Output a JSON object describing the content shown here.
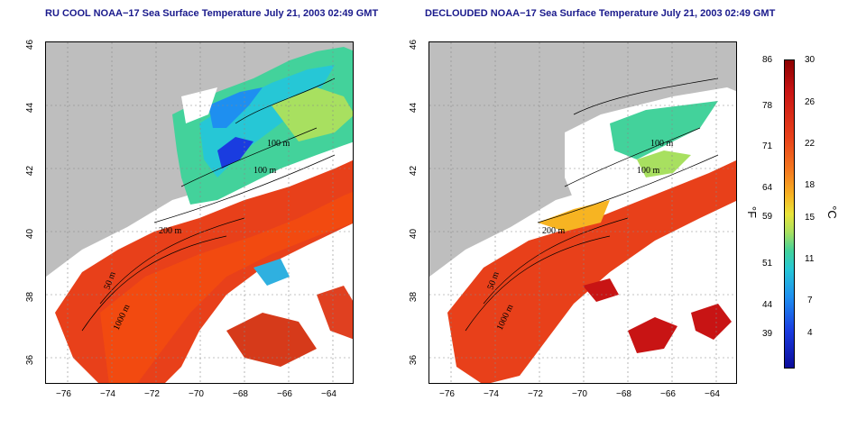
{
  "left_panel": {
    "title": "RU COOL NOAA−17 Sea Surface Temperature July 21, 2003 02:49 GMT"
  },
  "right_panel": {
    "title": "DECLOUDED NOAA−17 Sea Surface Temperature July 21, 2003 02:49 GMT"
  },
  "x_ticks": [
    "−76",
    "−74",
    "−72",
    "−70",
    "−68",
    "−66",
    "−64"
  ],
  "y_ticks": [
    "46",
    "44",
    "42",
    "40",
    "38",
    "36"
  ],
  "contours": {
    "c100": "100 m",
    "c100b": "100 m",
    "c200": "200 m",
    "c50": "50 m",
    "c1000": "1000 m"
  },
  "colorbar": {
    "f_labels": [
      "86",
      "78",
      "71",
      "64",
      "59",
      "51",
      "44",
      "39"
    ],
    "c_labels": [
      "30",
      "26",
      "22",
      "18",
      "15",
      "11",
      "7",
      "4"
    ],
    "f_unit": "°F",
    "c_unit": "°C"
  },
  "colors": {
    "land": "#bebebe",
    "warm": "#e8401a",
    "cool": "#26c7d6",
    "title": "#1a1a8c"
  }
}
